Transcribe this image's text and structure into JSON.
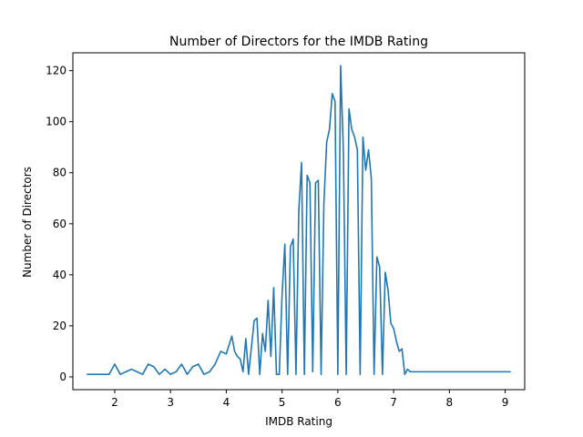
{
  "chart_data": {
    "type": "line",
    "title": "Number of Directors for the IMDB Rating",
    "xlabel": "IMDB Rating",
    "ylabel": "Number of Directors",
    "xlim": [
      1.25,
      9.35
    ],
    "ylim": [
      -5,
      127
    ],
    "xticks": [
      2,
      3,
      4,
      5,
      6,
      7,
      8,
      9
    ],
    "yticks": [
      0,
      20,
      40,
      60,
      80,
      100,
      120
    ],
    "grid": false,
    "legend": "none",
    "series": [
      {
        "color": "#1f77b4",
        "x": [
          1.5,
          1.6,
          1.7,
          1.8,
          1.9,
          2.0,
          2.1,
          2.2,
          2.3,
          2.4,
          2.5,
          2.6,
          2.7,
          2.8,
          2.9,
          3.0,
          3.1,
          3.2,
          3.3,
          3.4,
          3.5,
          3.6,
          3.7,
          3.8,
          3.9,
          4.0,
          4.1,
          4.15,
          4.2,
          4.25,
          4.3,
          4.35,
          4.4,
          4.5,
          4.55,
          4.6,
          4.65,
          4.7,
          4.75,
          4.8,
          4.85,
          4.9,
          4.95,
          5.0,
          5.05,
          5.1,
          5.15,
          5.2,
          5.25,
          5.3,
          5.35,
          5.4,
          5.45,
          5.5,
          5.55,
          5.6,
          5.65,
          5.7,
          5.75,
          5.8,
          5.85,
          5.9,
          5.95,
          6.0,
          6.05,
          6.1,
          6.15,
          6.2,
          6.25,
          6.3,
          6.35,
          6.4,
          6.45,
          6.5,
          6.55,
          6.6,
          6.65,
          6.7,
          6.75,
          6.8,
          6.85,
          6.9,
          6.95,
          7.0,
          7.05,
          7.1,
          7.15,
          7.2,
          7.25,
          7.3,
          7.35,
          7.4,
          7.45,
          7.5,
          7.55,
          7.6,
          7.65,
          7.7,
          7.75,
          7.8,
          7.85,
          7.9,
          7.95,
          8.0,
          8.05,
          8.1,
          8.15,
          8.2,
          8.25,
          8.3,
          8.35,
          8.4,
          8.5,
          8.6,
          8.7,
          8.8,
          8.9,
          9.0,
          9.1
        ],
        "y": [
          1,
          1,
          1,
          1,
          1,
          5,
          1,
          2,
          3,
          2,
          1,
          5,
          4,
          1,
          3,
          1,
          2,
          5,
          1,
          4,
          5,
          1,
          2,
          5,
          10,
          9,
          16,
          10,
          8,
          7,
          2,
          15,
          1,
          22,
          23,
          1,
          17,
          10,
          30,
          8,
          35,
          1,
          1,
          32,
          52,
          1,
          51,
          54,
          1,
          65,
          84,
          1,
          79,
          76,
          2,
          76,
          77,
          1,
          68,
          92,
          97,
          111,
          108,
          1,
          122,
          88,
          1,
          105,
          97,
          94,
          89,
          1,
          94,
          81,
          89,
          78,
          1,
          47,
          43,
          1,
          41,
          34,
          21,
          19,
          14,
          10,
          11,
          1,
          3,
          2,
          2,
          2,
          2,
          2,
          2,
          2,
          2,
          2,
          2,
          2,
          2,
          2,
          2,
          2,
          2,
          2,
          2,
          2,
          2,
          2,
          2,
          2,
          2,
          2,
          2,
          2,
          2,
          2,
          2
        ]
      }
    ]
  }
}
